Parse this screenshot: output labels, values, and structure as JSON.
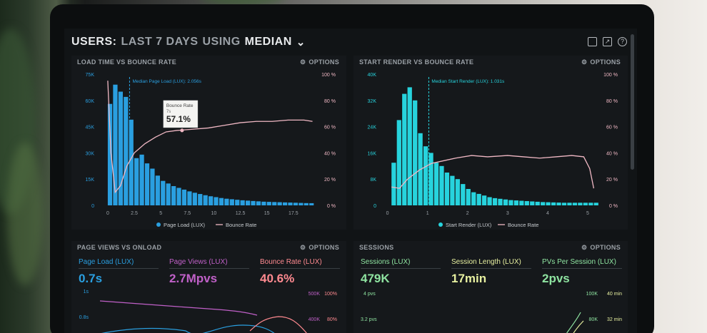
{
  "header": {
    "prefix": "USERS:",
    "period": "LAST 7 DAYS",
    "using": "USING",
    "stat": "MEDIAN"
  },
  "options_label": "OPTIONS",
  "colors": {
    "blue": "#2a9fe0",
    "cyan": "#27d3dd",
    "pink": "#f0b8c4",
    "purple": "#c060c8",
    "green": "#8ee3a0",
    "red": "#ff8a90",
    "text": "#9aa0a6"
  },
  "load_chart": {
    "title": "LOAD TIME VS BOUNCE RATE",
    "chart_data": {
      "type": "bar",
      "marker_label": "Median Page Load (LUX): 2.056s",
      "marker_x": 2.056,
      "x_ticks": [
        "0",
        "2.5",
        "5",
        "7.5",
        "10",
        "12.5",
        "15",
        "17.5"
      ],
      "x_tick_values": [
        0,
        2.5,
        5,
        7.5,
        10,
        12.5,
        15,
        17.5
      ],
      "xlim": [
        -0.6,
        19.6
      ],
      "y_left_ticks": [
        "0",
        "15K",
        "30K",
        "45K",
        "60K",
        "75K"
      ],
      "y_left_max": 75000,
      "y_right_ticks": [
        "0 %",
        "20 %",
        "40 %",
        "60 %",
        "80 %",
        "100 %"
      ],
      "bar_width": 0.5,
      "bar_x_start": 0,
      "bars": [
        58000,
        69000,
        65000,
        62000,
        49000,
        27000,
        29000,
        24000,
        21000,
        17000,
        14000,
        12500,
        11000,
        10000,
        9000,
        8000,
        7200,
        6500,
        5800,
        5200,
        4700,
        4200,
        3800,
        3500,
        3200,
        2900,
        2700,
        2500,
        2300,
        2100,
        2000,
        1900,
        1800,
        1700,
        1600,
        1500,
        1400,
        1300,
        1250
      ],
      "line_points": [
        [
          0,
          95
        ],
        [
          0.3,
          40
        ],
        [
          0.7,
          10
        ],
        [
          1.2,
          15
        ],
        [
          1.8,
          30
        ],
        [
          2.5,
          40
        ],
        [
          3.5,
          47
        ],
        [
          4.5,
          52
        ],
        [
          5.5,
          56
        ],
        [
          6.5,
          57.1
        ],
        [
          8,
          58
        ],
        [
          9.5,
          59
        ],
        [
          11,
          61
        ],
        [
          12.5,
          63
        ],
        [
          14,
          64
        ],
        [
          15.5,
          64
        ],
        [
          17,
          65
        ],
        [
          18.5,
          65
        ],
        [
          19.3,
          64
        ]
      ],
      "tooltip": {
        "title": "Bounce Rate",
        "sub": "7s",
        "value": "57.1%",
        "x": 7.0
      },
      "legend": [
        {
          "name": "Page Load (LUX)"
        },
        {
          "name": "Bounce Rate"
        }
      ]
    }
  },
  "render_chart": {
    "title": "START RENDER VS BOUNCE RATE",
    "chart_data": {
      "type": "bar",
      "marker_label": "Median Start Render (LUX): 1.031s",
      "marker_x": 1.031,
      "x_ticks": [
        "0",
        "1",
        "2",
        "3",
        "4",
        "5"
      ],
      "x_tick_values": [
        0,
        1,
        2,
        3,
        4,
        5
      ],
      "xlim": [
        -0.1,
        5.25
      ],
      "y_left_ticks": [
        "0",
        "8K",
        "16K",
        "24K",
        "32K",
        "40K"
      ],
      "y_left_max": 40000,
      "y_right_ticks": [
        "0 %",
        "20 %",
        "40 %",
        "60 %",
        "80 %",
        "100 %"
      ],
      "bar_width": 0.133,
      "bar_x_start": 0.1,
      "bars": [
        13000,
        26000,
        34000,
        36000,
        32000,
        22000,
        18000,
        16000,
        13000,
        12000,
        10000,
        9000,
        8000,
        6500,
        5000,
        4000,
        3500,
        3000,
        2500,
        2200,
        2000,
        1800,
        1600,
        1500,
        1400,
        1300,
        1200,
        1100,
        1000,
        950,
        900,
        850,
        800,
        800,
        800,
        800,
        800,
        800,
        800
      ],
      "line_points": [
        [
          0.1,
          14
        ],
        [
          0.3,
          13
        ],
        [
          0.5,
          20
        ],
        [
          0.8,
          27
        ],
        [
          1.1,
          32
        ],
        [
          1.4,
          34
        ],
        [
          1.7,
          36
        ],
        [
          2.1,
          38
        ],
        [
          2.5,
          37
        ],
        [
          3,
          38
        ],
        [
          3.4,
          37
        ],
        [
          3.8,
          36
        ],
        [
          4.2,
          37
        ],
        [
          4.6,
          38
        ],
        [
          4.9,
          37
        ],
        [
          5.05,
          28
        ],
        [
          5.15,
          13
        ]
      ],
      "legend": [
        {
          "name": "Start Render (LUX)"
        },
        {
          "name": "Bounce Rate"
        }
      ]
    }
  },
  "pageviews_panel": {
    "title": "PAGE VIEWS VS ONLOAD",
    "metrics": [
      {
        "label": "Page Load (LUX)",
        "value": "0.7s"
      },
      {
        "label": "Page Views (LUX)",
        "value": "2.7Mpvs"
      },
      {
        "label": "Bounce Rate (LUX)",
        "value": "40.6%"
      }
    ],
    "y_left_ticks": [
      "1s",
      "0.8s"
    ],
    "y_mid_ticks": [
      "500K",
      "400K"
    ],
    "y_right_ticks": [
      "100%",
      "80%"
    ]
  },
  "sessions_panel": {
    "title": "SESSIONS",
    "metrics": [
      {
        "label": "Sessions (LUX)",
        "value": "479K"
      },
      {
        "label": "Session Length (LUX)",
        "value": "17min"
      },
      {
        "label": "PVs Per Session (LUX)",
        "value": "2pvs"
      }
    ],
    "y_left_ticks": [
      "4 pvs",
      "3.2 pvs"
    ],
    "y_mid_ticks": [
      "100K",
      "80K"
    ],
    "y_right_ticks": [
      "40 min",
      "32 min"
    ]
  }
}
